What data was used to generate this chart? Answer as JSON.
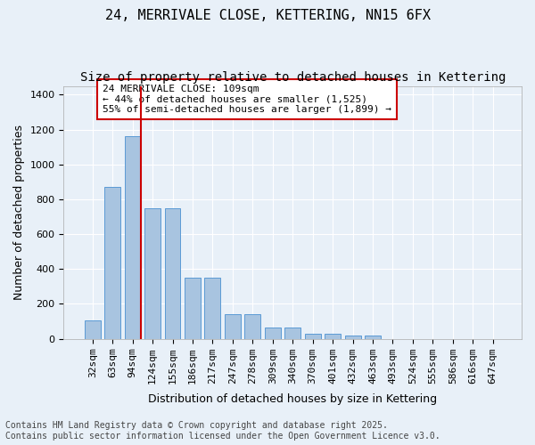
{
  "title": "24, MERRIVALE CLOSE, KETTERING, NN15 6FX",
  "subtitle": "Size of property relative to detached houses in Kettering",
  "xlabel": "Distribution of detached houses by size in Kettering",
  "ylabel": "Number of detached properties",
  "categories": [
    "32sqm",
    "63sqm",
    "94sqm",
    "124sqm",
    "155sqm",
    "186sqm",
    "217sqm",
    "247sqm",
    "278sqm",
    "309sqm",
    "340sqm",
    "370sqm",
    "401sqm",
    "432sqm",
    "463sqm",
    "493sqm",
    "524sqm",
    "555sqm",
    "586sqm",
    "616sqm",
    "647sqm"
  ],
  "values": [
    103,
    870,
    1160,
    750,
    748,
    350,
    350,
    143,
    143,
    63,
    65,
    30,
    30,
    18,
    18,
    0,
    0,
    0,
    0,
    0,
    0
  ],
  "bar_color": "#a8c4e0",
  "bar_edge_color": "#5b9bd5",
  "background_color": "#e8f0f8",
  "grid_color": "#ffffff",
  "vline_x": 2,
  "vline_color": "#cc0000",
  "annotation_text": "24 MERRIVALE CLOSE: 109sqm\n← 44% of detached houses are smaller (1,525)\n55% of semi-detached houses are larger (1,899) →",
  "annotation_box_color": "#ffffff",
  "annotation_box_edge": "#cc0000",
  "ylim": [
    0,
    1450
  ],
  "yticks": [
    0,
    200,
    400,
    600,
    800,
    1000,
    1200,
    1400
  ],
  "footnote": "Contains HM Land Registry data © Crown copyright and database right 2025.\nContains public sector information licensed under the Open Government Licence v3.0.",
  "title_fontsize": 11,
  "subtitle_fontsize": 10,
  "axis_label_fontsize": 9,
  "tick_fontsize": 8,
  "annotation_fontsize": 8,
  "footnote_fontsize": 7
}
